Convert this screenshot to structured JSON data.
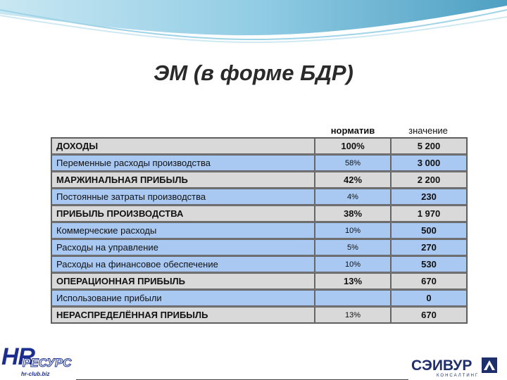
{
  "title": "ЭМ (в форме БДР)",
  "columns": {
    "norm": "норматив",
    "value": "значение"
  },
  "rows": [
    {
      "name": "ДОХОДЫ",
      "norm": "100%",
      "value": "5 200"
    },
    {
      "name": "Переменные расходы производства",
      "norm": "58%",
      "value": "3 000"
    },
    {
      "name": "МАРЖИНАЛЬНАЯ ПРИБЫЛЬ",
      "norm": "42%",
      "value": "2 200"
    },
    {
      "name": "Постоянные затраты производства",
      "norm": "4%",
      "value": "230"
    },
    {
      "name": "ПРИБЫЛЬ ПРОИЗВОДСТВА",
      "norm": "38%",
      "value": "1 970"
    },
    {
      "name": "Коммерческие расходы",
      "norm": "10%",
      "value": "500"
    },
    {
      "name": "Расходы на управление",
      "norm": "5%",
      "value": "270"
    },
    {
      "name": "Расходы на финансовое обеспечение",
      "norm": "10%",
      "value": "530"
    },
    {
      "name": "ОПЕРАЦИОННАЯ ПРИБЫЛЬ",
      "norm": "13%",
      "value": "670"
    },
    {
      "name": "Использование прибыли",
      "norm": "",
      "value": "0"
    },
    {
      "name": "НЕРАСПРЕДЕЛЁННАЯ ПРИБЫЛЬ",
      "norm": "13%",
      "value": "670"
    }
  ],
  "logos": {
    "left": {
      "main": "HR",
      "sub": "РЕСУРС",
      "url": "hr-club.biz"
    },
    "right": {
      "main": "СЭИВУР",
      "sub": "КОНСАЛТИНГ"
    }
  },
  "colors": {
    "row_gray": "#d9d9d9",
    "row_blue": "#a9c9f2",
    "title": "#2a2a2a"
  }
}
